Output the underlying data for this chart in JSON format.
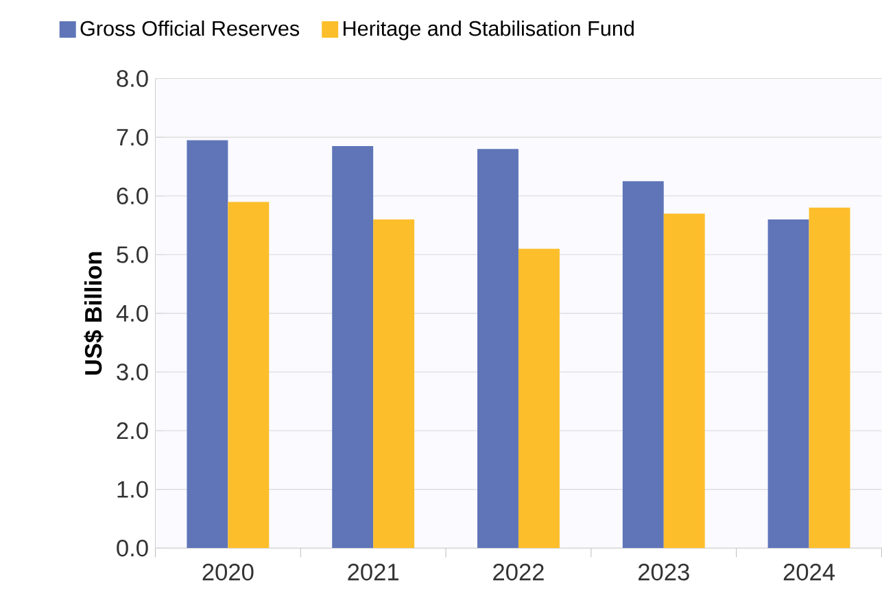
{
  "chart_data": {
    "type": "bar",
    "ylabel": "US$ Billion",
    "categories": [
      "2020",
      "2021",
      "2022",
      "2023",
      "2024"
    ],
    "series": [
      {
        "name": "Gross Official Reserves",
        "color": "#5f75b8",
        "values": [
          6.95,
          6.85,
          6.8,
          6.25,
          5.6
        ]
      },
      {
        "name": "Heritage and Stabilisation Fund",
        "color": "#fcbe2b",
        "values": [
          5.9,
          5.6,
          5.1,
          5.7,
          5.8
        ]
      }
    ],
    "ylim": [
      0,
      8
    ],
    "yticks": [
      {
        "value": 0,
        "label": "0.0"
      },
      {
        "value": 1,
        "label": "1.0"
      },
      {
        "value": 2,
        "label": "2.0"
      },
      {
        "value": 3,
        "label": "3.0"
      },
      {
        "value": 4,
        "label": "4.0"
      },
      {
        "value": 5,
        "label": "5.0"
      },
      {
        "value": 6,
        "label": "6.0"
      },
      {
        "value": 7,
        "label": "7.0"
      },
      {
        "value": 8,
        "label": "8.0"
      }
    ],
    "grid": "y",
    "legend": "top"
  }
}
